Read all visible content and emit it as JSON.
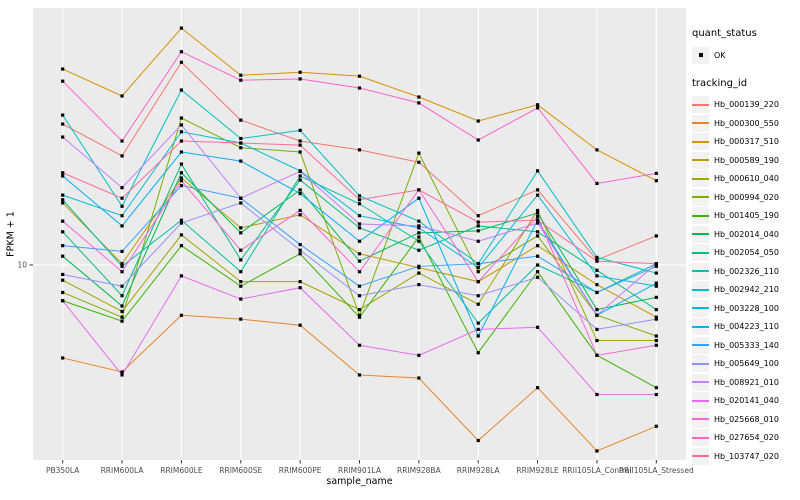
{
  "chart_data": {
    "type": "line",
    "title": "",
    "xlabel": "sample_name",
    "ylabel": "FPKM + 1",
    "y_scale": "log10",
    "ylim": [
      2.2,
      70
    ],
    "y_ticks": [
      {
        "value": 10,
        "label": "10"
      }
    ],
    "grid": true,
    "panel_bg": "#EBEBEB",
    "grid_color": "#FFFFFF",
    "point_color": "#000000",
    "point_shape": "square",
    "legend_position": "right",
    "categories": [
      "PB350LA",
      "RRIM600LA",
      "RRIM600LE",
      "RRIM600SE",
      "RRIM600PE",
      "RRIM901LA",
      "RRIM928BA",
      "RRIM928LA",
      "RRIM928LE",
      "RRII105LA_Control",
      "RRII105LA_Stressed"
    ],
    "series": [
      {
        "name": "Hb_000139_220",
        "color": "#F8766D",
        "values": [
          29.5,
          23.1,
          47.4,
          30.4,
          25.9,
          24.2,
          22.0,
          14.6,
          17.8,
          10.4,
          12.5
        ]
      },
      {
        "name": "Hb_000300_550",
        "color": "#E88526",
        "values": [
          4.9,
          4.4,
          6.8,
          6.6,
          6.3,
          4.3,
          4.2,
          2.6,
          3.9,
          2.4,
          2.9
        ]
      },
      {
        "name": "Hb_000317_510",
        "color": "#D89000",
        "values": [
          45.0,
          36.6,
          61.6,
          42.9,
          43.9,
          42.6,
          36.3,
          30.2,
          34.2,
          24.2,
          19.1
        ]
      },
      {
        "name": "Hb_000589_190",
        "color": "#C09B00",
        "values": [
          16.1,
          10.1,
          19.5,
          13.3,
          14.7,
          10.9,
          9.8,
          8.8,
          11.6,
          8.6,
          6.7
        ]
      },
      {
        "name": "Hb_000610_040",
        "color": "#A3A500",
        "values": [
          8.9,
          7.0,
          12.6,
          8.8,
          8.8,
          7.1,
          9.4,
          7.4,
          15.2,
          5.6,
          5.6
        ]
      },
      {
        "name": "Hb_000994_020",
        "color": "#7CAE00",
        "values": [
          8.1,
          6.7,
          30.9,
          24.6,
          23.8,
          6.8,
          23.6,
          9.5,
          12.5,
          6.8,
          5.8
        ]
      },
      {
        "name": "Hb_001405_190",
        "color": "#39B600",
        "values": [
          7.6,
          6.5,
          11.6,
          8.5,
          10.9,
          6.7,
          12.4,
          5.1,
          9.5,
          5.0,
          3.9
        ]
      },
      {
        "name": "Hb_002014_040",
        "color": "#00BB4E",
        "values": [
          10.7,
          7.3,
          20.3,
          12.8,
          17.8,
          10.3,
          12.8,
          13.0,
          14.9,
          7.1,
          7.8
        ]
      },
      {
        "name": "Hb_002054_050",
        "color": "#00BF7D",
        "values": [
          12.9,
          7.9,
          21.7,
          10.4,
          19.2,
          13.3,
          11.2,
          13.5,
          12.9,
          9.6,
          7.1
        ]
      },
      {
        "name": "Hb_002326_110",
        "color": "#00C1A3",
        "values": [
          16.5,
          9.9,
          14.1,
          9.5,
          19.8,
          16.0,
          12.0,
          6.4,
          10.0,
          8.1,
          10.1
        ]
      },
      {
        "name": "Hb_002942_210",
        "color": "#00BFC4",
        "values": [
          31.6,
          15.7,
          38.3,
          26.4,
          28.1,
          17.0,
          14.0,
          10.1,
          20.6,
          10.6,
          9.4
        ]
      },
      {
        "name": "Hb_003228_100",
        "color": "#00BAE0",
        "values": [
          17.1,
          14.6,
          27.8,
          25.5,
          20.6,
          14.6,
          13.3,
          9.8,
          17.1,
          9.2,
          8.5
        ]
      },
      {
        "name": "Hb_004223_110",
        "color": "#00B0F6",
        "values": [
          19.8,
          13.5,
          23.8,
          22.2,
          17.3,
          12.0,
          16.7,
          5.8,
          14.1,
          6.8,
          8.7
        ]
      },
      {
        "name": "Hb_005333_140",
        "color": "#35A2FF",
        "values": [
          11.6,
          11.1,
          18.4,
          16.7,
          11.7,
          8.5,
          9.9,
          10.1,
          10.7,
          8.1,
          9.9
        ]
      },
      {
        "name": "Hb_005649_100",
        "color": "#9590FF",
        "values": [
          9.3,
          8.5,
          13.8,
          16.1,
          11.2,
          7.9,
          8.6,
          7.9,
          9.1,
          6.1,
          6.6
        ]
      },
      {
        "name": "Hb_008921_010",
        "color": "#C77CFF",
        "values": [
          26.7,
          18.1,
          29.3,
          16.7,
          20.5,
          13.7,
          13.5,
          12.0,
          13.8,
          6.8,
          10.1
        ]
      },
      {
        "name": "Hb_020141_040",
        "color": "#E76BF3",
        "values": [
          7.6,
          4.3,
          9.2,
          7.7,
          8.4,
          5.4,
          5.0,
          6.1,
          6.2,
          3.7,
          3.7
        ]
      },
      {
        "name": "Hb_025668_010",
        "color": "#FA62DB",
        "values": [
          14.0,
          9.5,
          19.1,
          11.2,
          15.2,
          9.5,
          17.8,
          8.8,
          14.5,
          5.0,
          5.4
        ]
      },
      {
        "name": "Hb_027654_020",
        "color": "#FF61CC",
        "values": [
          41.0,
          25.9,
          51.4,
          41.3,
          41.7,
          38.9,
          34.7,
          26.1,
          33.4,
          18.7,
          20.2
        ]
      },
      {
        "name": "Hb_103747_020",
        "color": "#FF6A98",
        "values": [
          20.3,
          16.7,
          25.9,
          25.5,
          25.1,
          16.5,
          17.8,
          13.9,
          14.1,
          10.3,
          10.1
        ]
      }
    ]
  },
  "legend": {
    "quant_status": {
      "title": "quant_status",
      "items": [
        "OK"
      ]
    },
    "tracking_id": {
      "title": "tracking_id"
    }
  }
}
